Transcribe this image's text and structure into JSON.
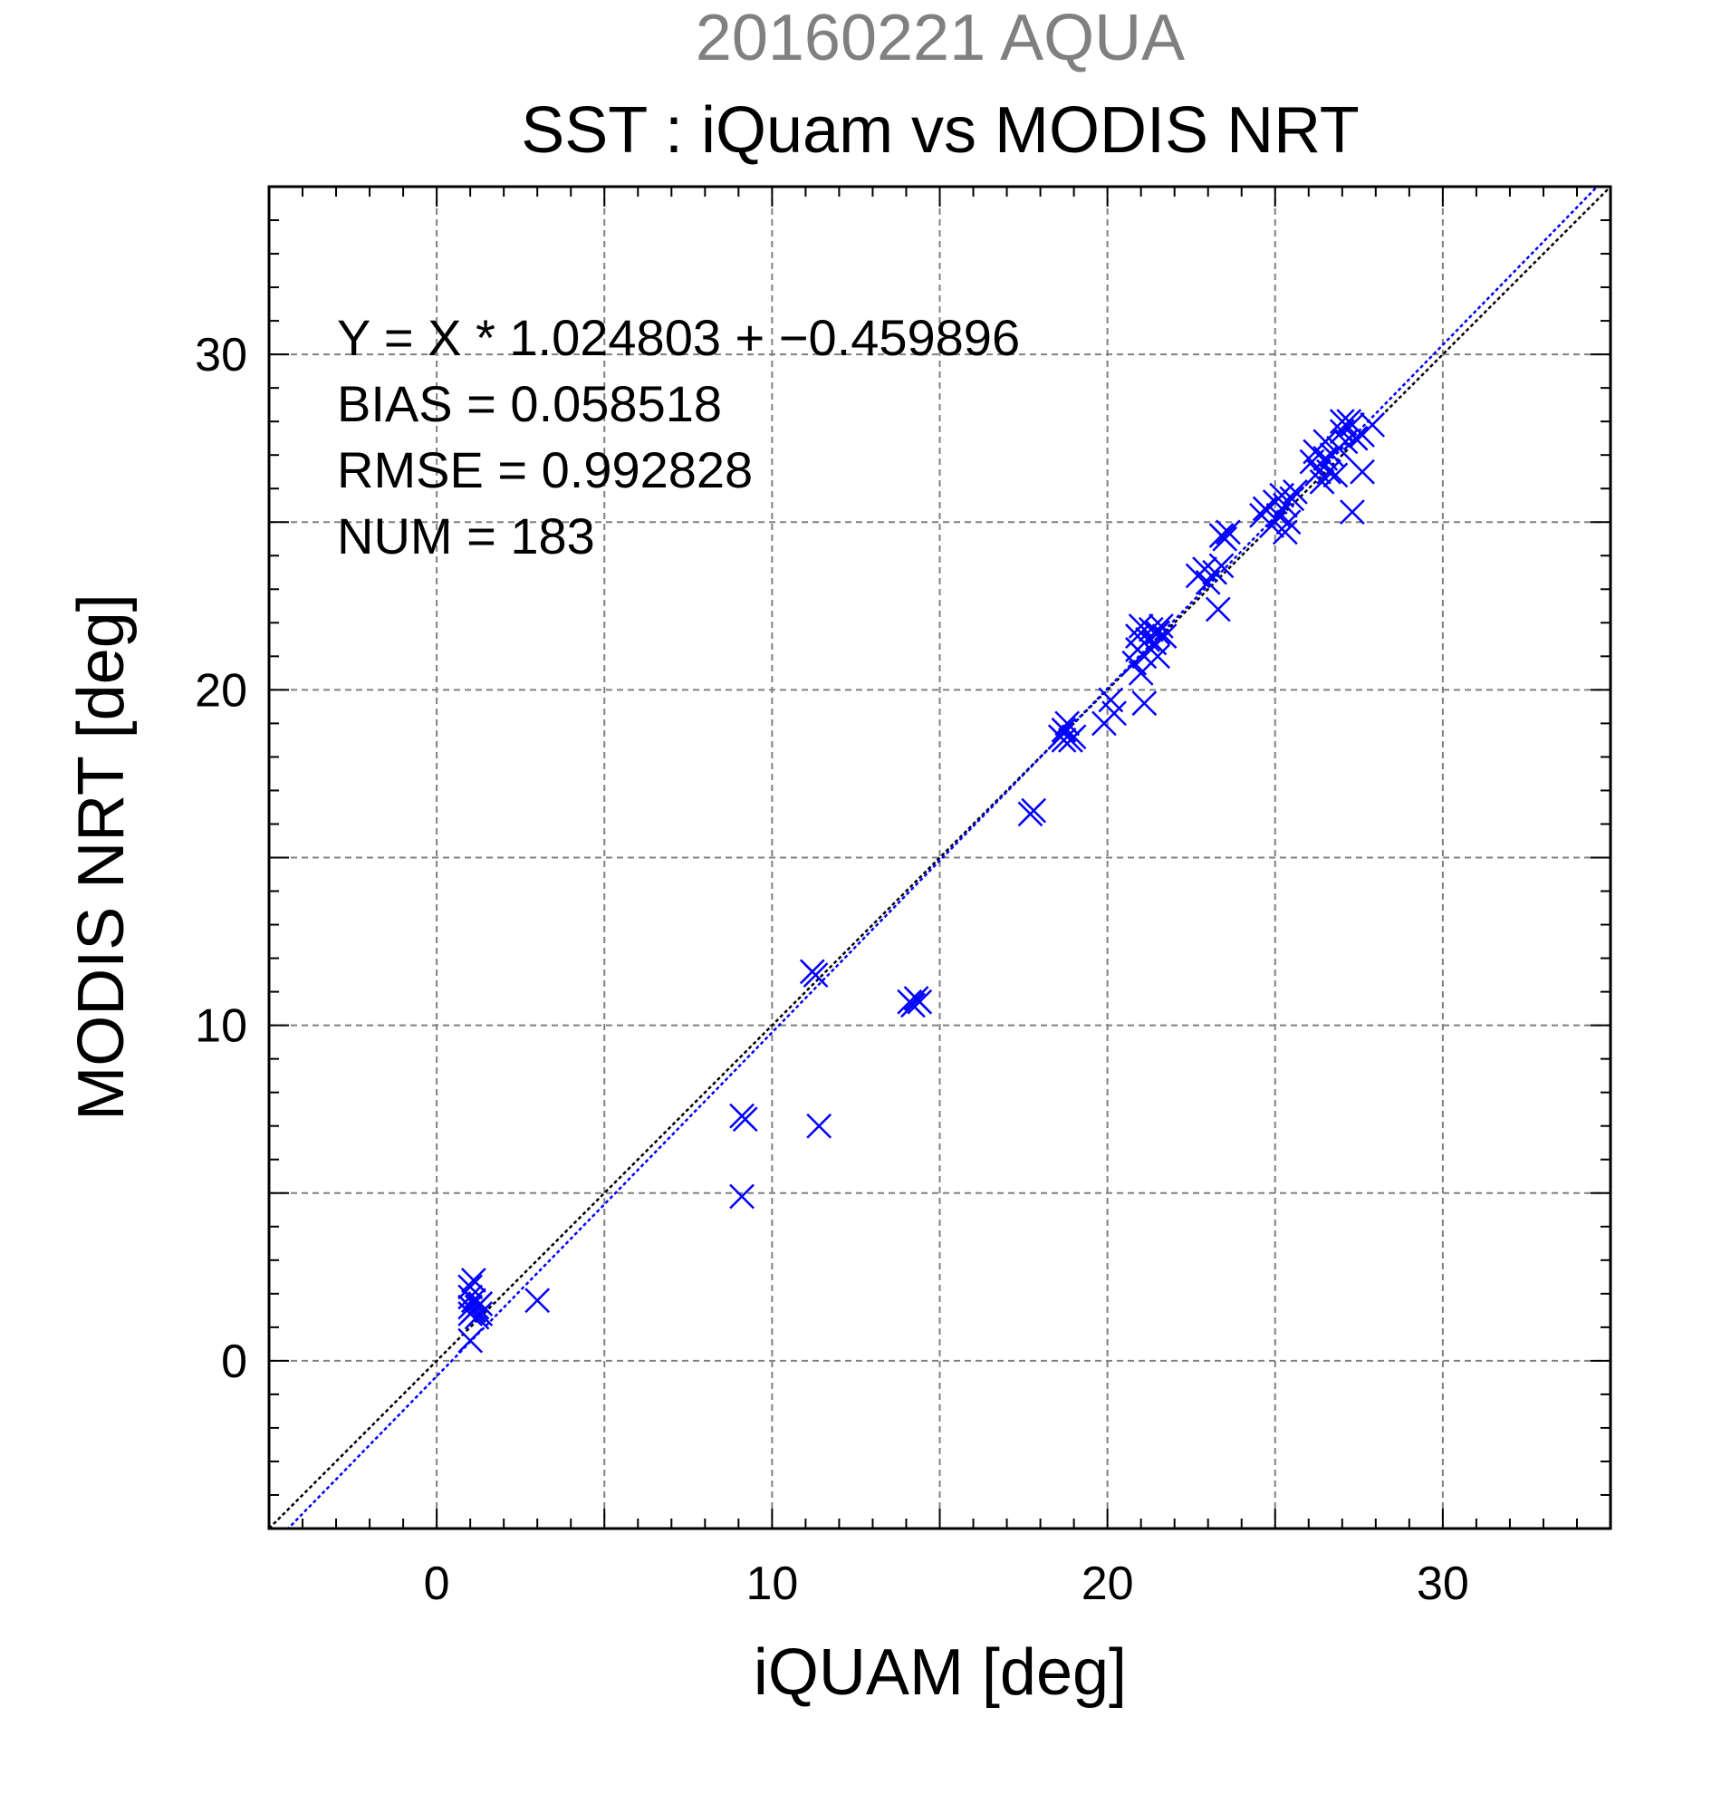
{
  "chart_data": {
    "type": "scatter",
    "title_date": "20160221 AQUA",
    "title": "SST : iQuam vs MODIS NRT",
    "xlabel": "iQUAM [deg]",
    "ylabel": "MODIS NRT [deg]",
    "xlim": [
      -5,
      35
    ],
    "ylim": [
      -5,
      35
    ],
    "xticks": [
      0,
      10,
      20,
      30
    ],
    "yticks": [
      0,
      10,
      20,
      30
    ],
    "minor_step": 1,
    "grid": true,
    "grid_step": 5,
    "colors": {
      "points": "#0000ff",
      "fit_line": "#0000ff",
      "identity_line": "#000000",
      "grid": "#808080"
    },
    "stats": {
      "equation": "Y = X * 1.024803 + −0.459896",
      "bias": "BIAS = 0.058518",
      "rmse": "RMSE = 0.992828",
      "num": "NUM = 183"
    },
    "fit": {
      "slope": 1.024803,
      "intercept": -0.459896
    },
    "points": [
      [
        1.0,
        0.6
      ],
      [
        1.0,
        1.4
      ],
      [
        1.0,
        1.6
      ],
      [
        1.0,
        1.9
      ],
      [
        1.0,
        2.2
      ],
      [
        1.1,
        1.5
      ],
      [
        1.1,
        1.8
      ],
      [
        1.1,
        2.4
      ],
      [
        1.2,
        1.3
      ],
      [
        1.2,
        1.6
      ],
      [
        1.3,
        1.4
      ],
      [
        1.3,
        1.7
      ],
      [
        3.0,
        1.8
      ],
      [
        9.1,
        4.9
      ],
      [
        9.1,
        7.3
      ],
      [
        9.2,
        7.2
      ],
      [
        11.2,
        11.6
      ],
      [
        11.3,
        11.5
      ],
      [
        11.4,
        7.0
      ],
      [
        14.1,
        10.7
      ],
      [
        14.2,
        10.6
      ],
      [
        14.3,
        10.8
      ],
      [
        14.4,
        10.7
      ],
      [
        17.7,
        16.3
      ],
      [
        17.8,
        16.4
      ],
      [
        18.6,
        18.6
      ],
      [
        18.7,
        18.5
      ],
      [
        18.7,
        18.8
      ],
      [
        18.8,
        19.0
      ],
      [
        18.9,
        18.5
      ],
      [
        19.0,
        18.6
      ],
      [
        19.9,
        19.0
      ],
      [
        20.1,
        19.7
      ],
      [
        20.2,
        19.3
      ],
      [
        20.8,
        20.8
      ],
      [
        20.9,
        21.2
      ],
      [
        20.9,
        21.6
      ],
      [
        21.0,
        20.5
      ],
      [
        21.0,
        21.9
      ],
      [
        21.1,
        19.6
      ],
      [
        21.1,
        21.0
      ],
      [
        21.2,
        21.5
      ],
      [
        21.3,
        21.8
      ],
      [
        21.4,
        21.4
      ],
      [
        21.5,
        21.7
      ],
      [
        21.5,
        21.0
      ],
      [
        21.6,
        21.9
      ],
      [
        21.7,
        21.6
      ],
      [
        22.7,
        23.4
      ],
      [
        22.9,
        23.6
      ],
      [
        23.0,
        23.2
      ],
      [
        23.2,
        23.5
      ],
      [
        23.3,
        22.4
      ],
      [
        23.4,
        23.7
      ],
      [
        23.4,
        24.6
      ],
      [
        23.5,
        24.5
      ],
      [
        23.6,
        24.7
      ],
      [
        24.6,
        25.2
      ],
      [
        24.7,
        25.4
      ],
      [
        24.9,
        24.9
      ],
      [
        25.0,
        25.6
      ],
      [
        25.1,
        25.2
      ],
      [
        25.2,
        25.8
      ],
      [
        25.3,
        24.7
      ],
      [
        25.3,
        25.5
      ],
      [
        25.4,
        25.0
      ],
      [
        25.5,
        25.7
      ],
      [
        25.6,
        25.9
      ],
      [
        26.1,
        26.8
      ],
      [
        26.2,
        27.1
      ],
      [
        26.3,
        26.5
      ],
      [
        26.4,
        26.2
      ],
      [
        26.5,
        26.9
      ],
      [
        26.5,
        27.4
      ],
      [
        26.6,
        26.5
      ],
      [
        26.7,
        27.0
      ],
      [
        26.8,
        26.4
      ],
      [
        26.9,
        27.2
      ],
      [
        27.0,
        27.7
      ],
      [
        27.0,
        28.0
      ],
      [
        27.1,
        27.4
      ],
      [
        27.2,
        28.0
      ],
      [
        27.3,
        27.9
      ],
      [
        27.3,
        25.3
      ],
      [
        27.4,
        27.5
      ],
      [
        27.6,
        27.6
      ],
      [
        27.6,
        26.5
      ],
      [
        27.9,
        27.9
      ]
    ]
  }
}
